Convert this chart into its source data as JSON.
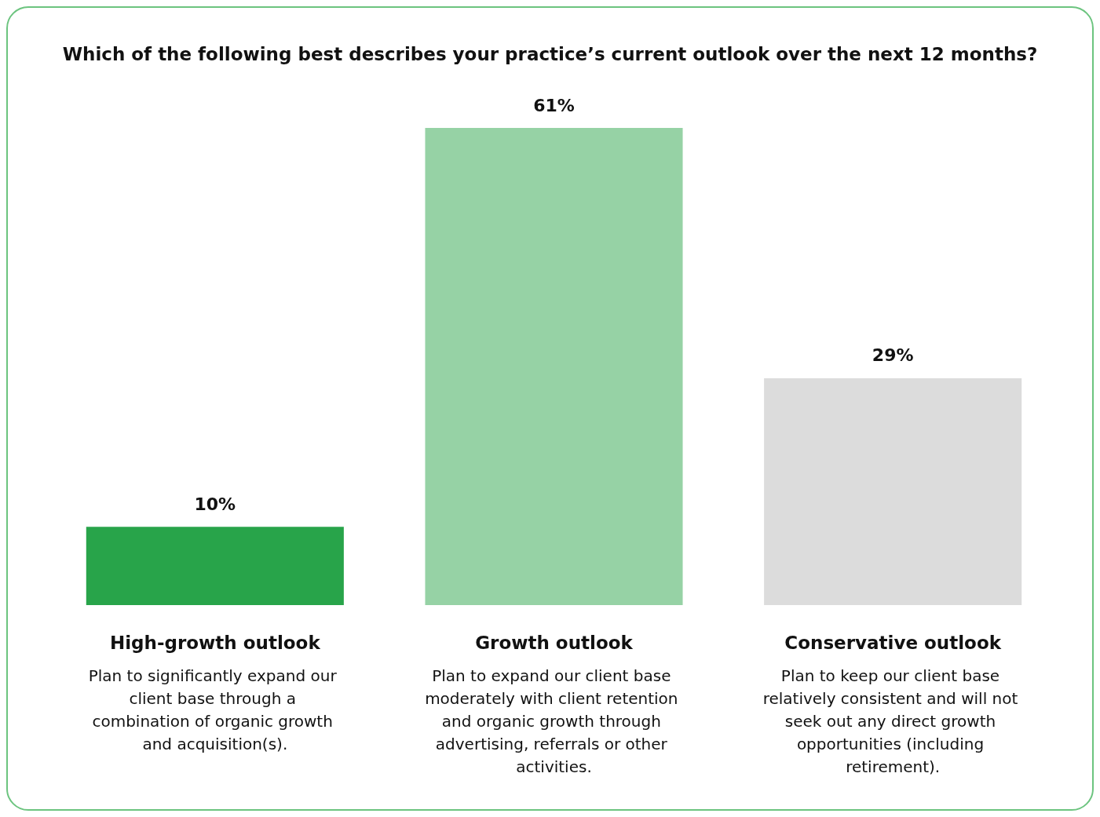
{
  "chart_data": {
    "type": "bar",
    "title": "Which of the following best describes your practice’s current outlook over the next 12 months?",
    "categories": [
      "High-growth outlook",
      "Growth outlook",
      "Conservative outlook"
    ],
    "values": [
      10,
      61,
      29
    ],
    "colors": [
      "#28a44a",
      "#96d2a5",
      "#dcdcdc"
    ],
    "value_labels": [
      "10%",
      "61%",
      "29%"
    ],
    "annotations": [
      "Plan to significantly expand our client base through a combination of organic growth and acquisition(s).",
      "Plan to expand our client base moderately with client retention and organic growth through advertising, referrals or other activities.",
      "Plan to keep our client base relatively consistent and will not seek out any direct growth opportunities (including retirement)."
    ]
  }
}
